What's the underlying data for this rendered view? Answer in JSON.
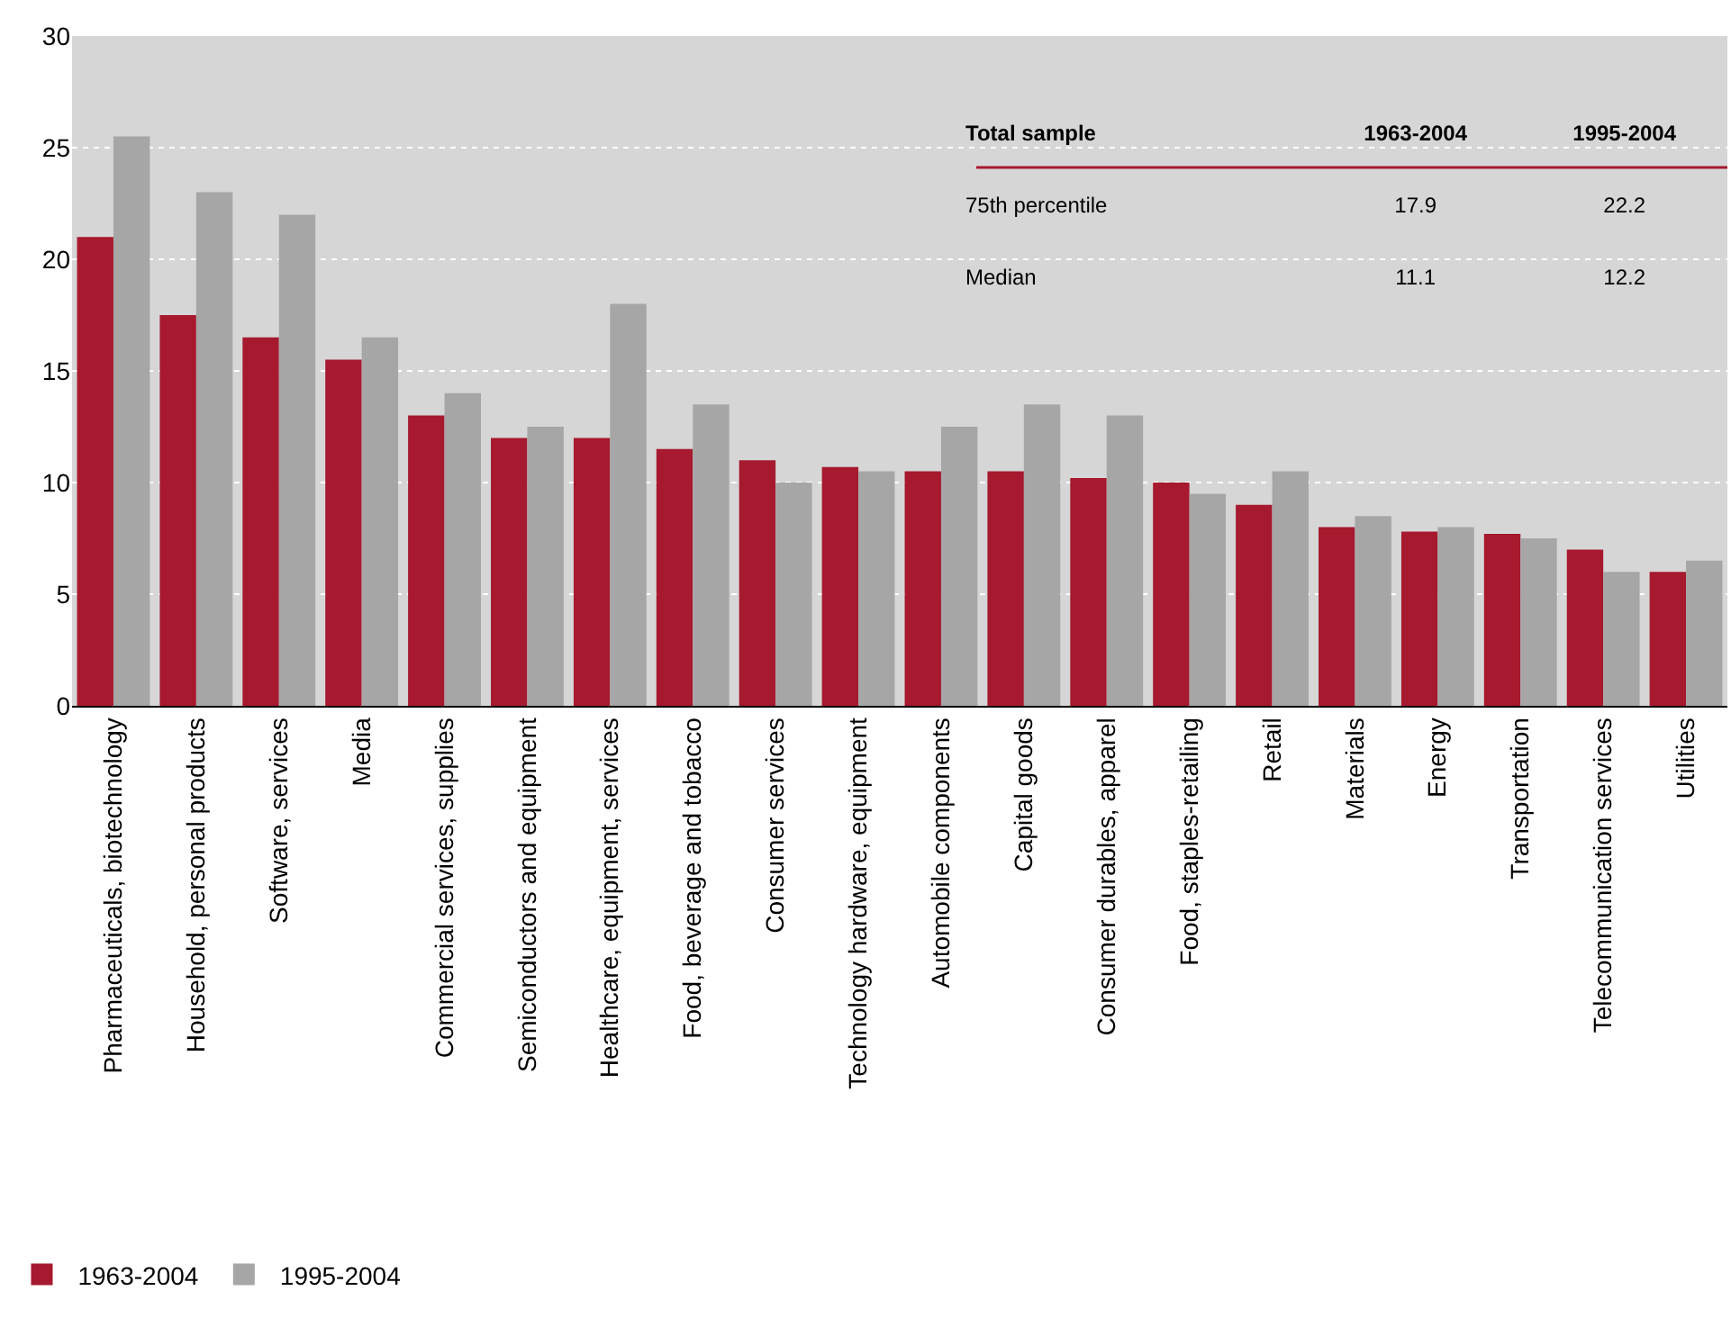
{
  "chart_data": {
    "type": "bar",
    "categories": [
      "Pharmaceuticals, biotechnology",
      "Household, personal products",
      "Software, services",
      "Media",
      "Commercial services, supplies",
      "Semiconductors and equipment",
      "Healthcare, equipment, services",
      "Food, beverage and tobacco",
      "Consumer services",
      "Technology hardware, equipment",
      "Automobile components",
      "Capital goods",
      "Consumer durables, apparel",
      "Food, staples-retailing",
      "Retail",
      "Materials",
      "Energy",
      "Transportation",
      "Telecommunication services",
      "Utilities"
    ],
    "series": [
      {
        "name": "1963-2004",
        "color": "#a6192e",
        "values": [
          21,
          17.5,
          16.5,
          15.5,
          13,
          12,
          12,
          11.5,
          11,
          10.7,
          10.5,
          10.5,
          10.2,
          10,
          9,
          8,
          7.8,
          7.7,
          7,
          6
        ]
      },
      {
        "name": "1995-2004",
        "color": "#a6a6a6",
        "values": [
          25.5,
          23,
          22,
          16.5,
          14,
          12.5,
          18,
          13.5,
          10,
          10.5,
          12.5,
          13.5,
          13,
          9.5,
          10.5,
          8.5,
          8,
          7.5,
          6,
          6.5
        ]
      }
    ],
    "annotations": [
      "Total sample",
      "1963-2004",
      "1995-2004",
      "75th percentile",
      "17.9",
      "22.2",
      "Median",
      "11.1",
      "12.2"
    ],
    "ylim": [
      0,
      30
    ],
    "yticks": [
      0,
      5,
      10,
      15,
      20,
      25,
      30
    ],
    "grid": "y",
    "legend": "bottom left"
  }
}
